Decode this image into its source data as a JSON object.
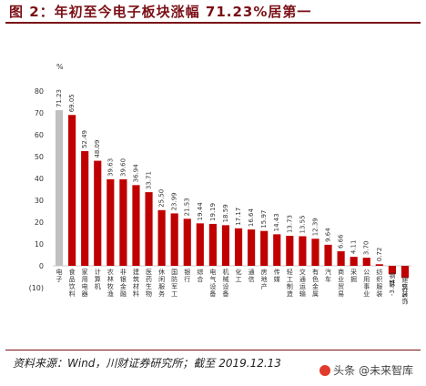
{
  "header": {
    "title": "图 2：年初至今电子板块涨幅 71.23%居第一"
  },
  "footer": {
    "source": "资料来源：Wind，川财证券研究所；截至 2019.12.13",
    "watermark": "头条 @未来智库"
  },
  "colors": {
    "accent": "#7a1016",
    "bar_highlight": "#c0c0c0",
    "bar_positive": "#c00000",
    "bar_negative": "#c00000"
  },
  "chart_data": {
    "type": "bar",
    "title": "",
    "xlabel": "",
    "ylabel": "%",
    "ylim": [
      -10,
      80
    ],
    "yticks": [
      80,
      70,
      60,
      50,
      40,
      30,
      20,
      10,
      0,
      -10
    ],
    "ytick_labels": [
      "80",
      "70",
      "60",
      "50",
      "40",
      "30",
      "20",
      "10",
      "0",
      "(10)"
    ],
    "grid": false,
    "legend": "none",
    "categories": [
      "电子",
      "食品饮料",
      "家用电器",
      "计算机",
      "农林牧渔",
      "非银金融",
      "建筑材料",
      "医药生物",
      "休闲服务",
      "国防军工",
      "银行",
      "综合",
      "电气设备",
      "机械设备",
      "化工",
      "通信",
      "房地产",
      "传媒",
      "轻工制造",
      "交通运输",
      "有色金属",
      "汽车",
      "商业贸易",
      "采掘",
      "公用事业",
      "纺织服装",
      "钢铁",
      "建筑装饰"
    ],
    "values": [
      71.23,
      69.05,
      52.49,
      48.09,
      39.63,
      39.6,
      36.94,
      33.71,
      25.5,
      23.99,
      21.53,
      19.44,
      19.19,
      18.59,
      17.17,
      16.64,
      15.97,
      14.43,
      13.73,
      13.55,
      12.39,
      9.64,
      6.66,
      4.11,
      3.7,
      0.72,
      -3.81,
      -5.55
    ],
    "value_labels": [
      "71.23",
      "69.05",
      "52.49",
      "48.09",
      "39.63",
      "39.60",
      "36.94",
      "33.71",
      "25.50",
      "23.99",
      "21.53",
      "19.44",
      "19.19",
      "18.59",
      "17.17",
      "16.64",
      "15.97",
      "14.43",
      "13.73",
      "13.55",
      "12.39",
      "9.64",
      "6.66",
      "4.11",
      "3.70",
      "0.72",
      "-3.81",
      "-5.55"
    ],
    "highlight_index": 0
  }
}
